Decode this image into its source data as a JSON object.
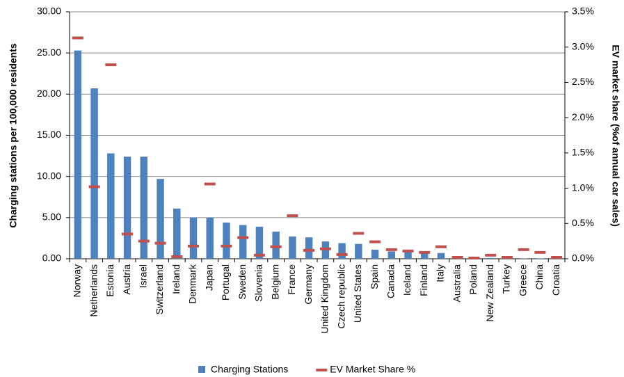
{
  "chart_data": {
    "type": "bar",
    "ylabel": "Charging stations per 100,000 residents",
    "y2label": "EV market share (%of annual car sales)",
    "categories": [
      "Norway",
      "Netherlands",
      "Estonia",
      "Austria",
      "Israel",
      "Switzerland",
      "Ireland",
      "Denmark",
      "Japan",
      "Portugal",
      "Sweden",
      "Slovenia",
      "Belgium",
      "France",
      "Germany",
      "United Kingdom",
      "Czech republic",
      "United States",
      "Spain",
      "Canada",
      "Iceland",
      "Finland",
      "Italy",
      "Australia",
      "Poland",
      "New Zealand",
      "Turkey",
      "Greece",
      "China",
      "Croatia"
    ],
    "series": [
      {
        "name": "Charging Stations",
        "color": "#4f81bd",
        "values": [
          25.3,
          20.7,
          12.8,
          12.4,
          12.4,
          9.7,
          6.1,
          5.0,
          5.0,
          4.4,
          4.1,
          3.9,
          3.3,
          2.7,
          2.6,
          2.1,
          1.9,
          1.8,
          1.1,
          0.9,
          0.8,
          0.8,
          0.7,
          0.2,
          0.1,
          0.1,
          0.1,
          0.05,
          0.05,
          0.02
        ]
      },
      {
        "name": "EV Market Share %",
        "color": "#c0504d",
        "axis": "y2",
        "style": "dash",
        "values": [
          3.13,
          1.02,
          2.75,
          0.35,
          0.25,
          0.22,
          0.03,
          0.18,
          1.06,
          0.18,
          0.3,
          0.05,
          0.17,
          0.61,
          0.12,
          0.14,
          0.06,
          0.36,
          0.24,
          0.13,
          0.11,
          0.09,
          0.17,
          0.02,
          0.01,
          0.05,
          0.02,
          0.13,
          0.09,
          0.02
        ]
      }
    ],
    "ylim": [
      0,
      30
    ],
    "yticks": [
      {
        "value": 0,
        "label": "0.00"
      },
      {
        "value": 5,
        "label": "5.00"
      },
      {
        "value": 10,
        "label": "10.00"
      },
      {
        "value": 15,
        "label": "15.00"
      },
      {
        "value": 20,
        "label": "20.00"
      },
      {
        "value": 25,
        "label": "25.00"
      },
      {
        "value": 30,
        "label": "30.00"
      }
    ],
    "y2lim": [
      0,
      3.5
    ],
    "y2ticks": [
      {
        "value": 0,
        "label": "0.0%"
      },
      {
        "value": 0.5,
        "label": "0.5%"
      },
      {
        "value": 1,
        "label": "1.0%"
      },
      {
        "value": 1.5,
        "label": "1.5%"
      },
      {
        "value": 2,
        "label": "2.0%"
      },
      {
        "value": 2.5,
        "label": "2.5%"
      },
      {
        "value": 3,
        "label": "3.0%"
      },
      {
        "value": 3.5,
        "label": "3.5%"
      }
    ],
    "grid": true,
    "legend": "bottom"
  }
}
